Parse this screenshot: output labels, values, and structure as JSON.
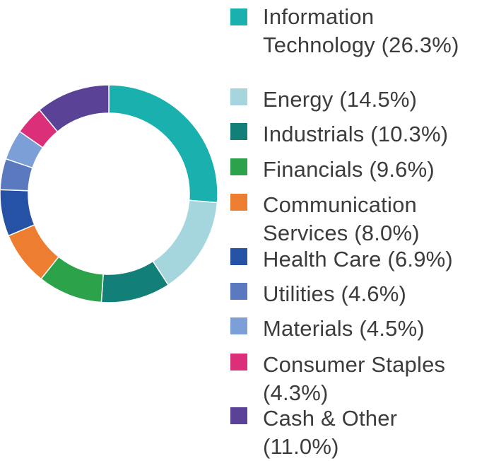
{
  "chart_data": {
    "type": "pie",
    "donut": true,
    "legend_position": "right",
    "series": [
      {
        "name": "Information Technology",
        "value": 26.3,
        "color": "#1ab0ad",
        "label": "Information Technology (26.3%)"
      },
      {
        "name": "Energy",
        "value": 14.5,
        "color": "#a6d6dd",
        "label": "Energy (14.5%)"
      },
      {
        "name": "Industrials",
        "value": 10.3,
        "color": "#127f78",
        "label": "Industrials (10.3%)"
      },
      {
        "name": "Financials",
        "value": 9.6,
        "color": "#2ca24a",
        "label": "Financials (9.6%)"
      },
      {
        "name": "Communication Services",
        "value": 8.0,
        "color": "#ed7d31",
        "label": "Communication Services (8.0%)"
      },
      {
        "name": "Health Care",
        "value": 6.9,
        "color": "#2652a5",
        "label": "Health Care (6.9%)"
      },
      {
        "name": "Utilities",
        "value": 4.6,
        "color": "#5b79be",
        "label": "Utilities (4.6%)"
      },
      {
        "name": "Materials",
        "value": 4.5,
        "color": "#7b9fd6",
        "label": "Materials (4.5%)"
      },
      {
        "name": "Consumer Staples",
        "value": 4.3,
        "color": "#db2f7a",
        "label": "Consumer Staples (4.3%)"
      },
      {
        "name": "Cash & Other",
        "value": 11.0,
        "color": "#5a4297",
        "label": "Cash & Other (11.0%)"
      }
    ]
  }
}
